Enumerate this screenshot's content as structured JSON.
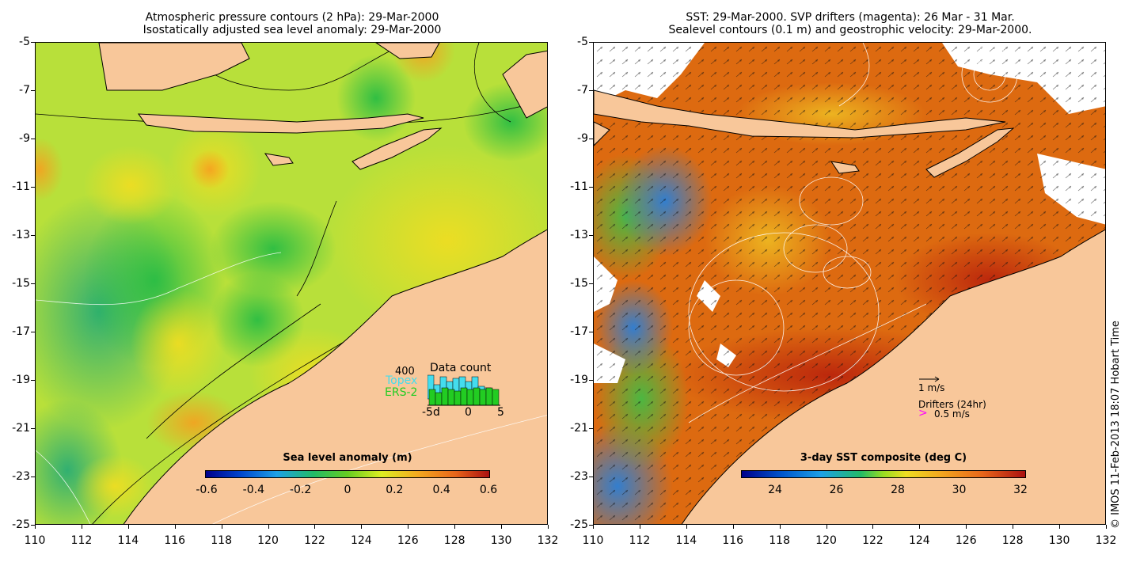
{
  "left_panel": {
    "title_line1": "Atmospheric pressure contours (2 hPa): 29-Mar-2000",
    "title_line2": "Isostatically adjusted sea level anomaly: 29-Mar-2000",
    "colorbar": {
      "title": "Sea level anomaly (m)",
      "ticks": [
        "-0.6",
        "-0.4",
        "-0.2",
        "0",
        "0.2",
        "0.4",
        "0.6"
      ]
    },
    "data_count": {
      "title": "Data count",
      "max_label": "400",
      "topex_label": "Topex",
      "ers_label": "ERS-2",
      "x_labels": [
        "-5d",
        "0",
        "5"
      ],
      "topex_color": "#44ddee",
      "ers_color": "#22cc22"
    }
  },
  "right_panel": {
    "title_line1": "SST: 29-Mar-2000. SVP drifters (magenta): 26 Mar - 31 Mar.",
    "title_line2": "Sealevel contours (0.1 m) and geostrophic velocity: 29-Mar-2000.",
    "colorbar": {
      "title": "3-day SST composite (deg C)",
      "ticks": [
        "24",
        "26",
        "28",
        "30",
        "32"
      ]
    },
    "velocity_legend": {
      "arrow_label": "1 m/s",
      "drifters_label": "Drifters (24hr)",
      "drifter_symbol": ">",
      "drifter_speed_label": "0.5 m/s",
      "drifter_color": "#ff00ff"
    }
  },
  "axes": {
    "y_ticks": [
      "-5",
      "-7",
      "-9",
      "-11",
      "-13",
      "-15",
      "-17",
      "-19",
      "-21",
      "-23",
      "-25"
    ],
    "x_ticks": [
      "110",
      "112",
      "114",
      "116",
      "118",
      "120",
      "122",
      "124",
      "126",
      "128",
      "130",
      "132"
    ],
    "lon_range": [
      110,
      132
    ],
    "lat_range": [
      -25,
      -5
    ]
  },
  "colors": {
    "land": "#f8c79a",
    "sla_mean": "#aadd22",
    "sst_mean": "#dd6a10"
  },
  "copyright": "© IMOS 11-Feb-2013 18:07 Hobart Time"
}
